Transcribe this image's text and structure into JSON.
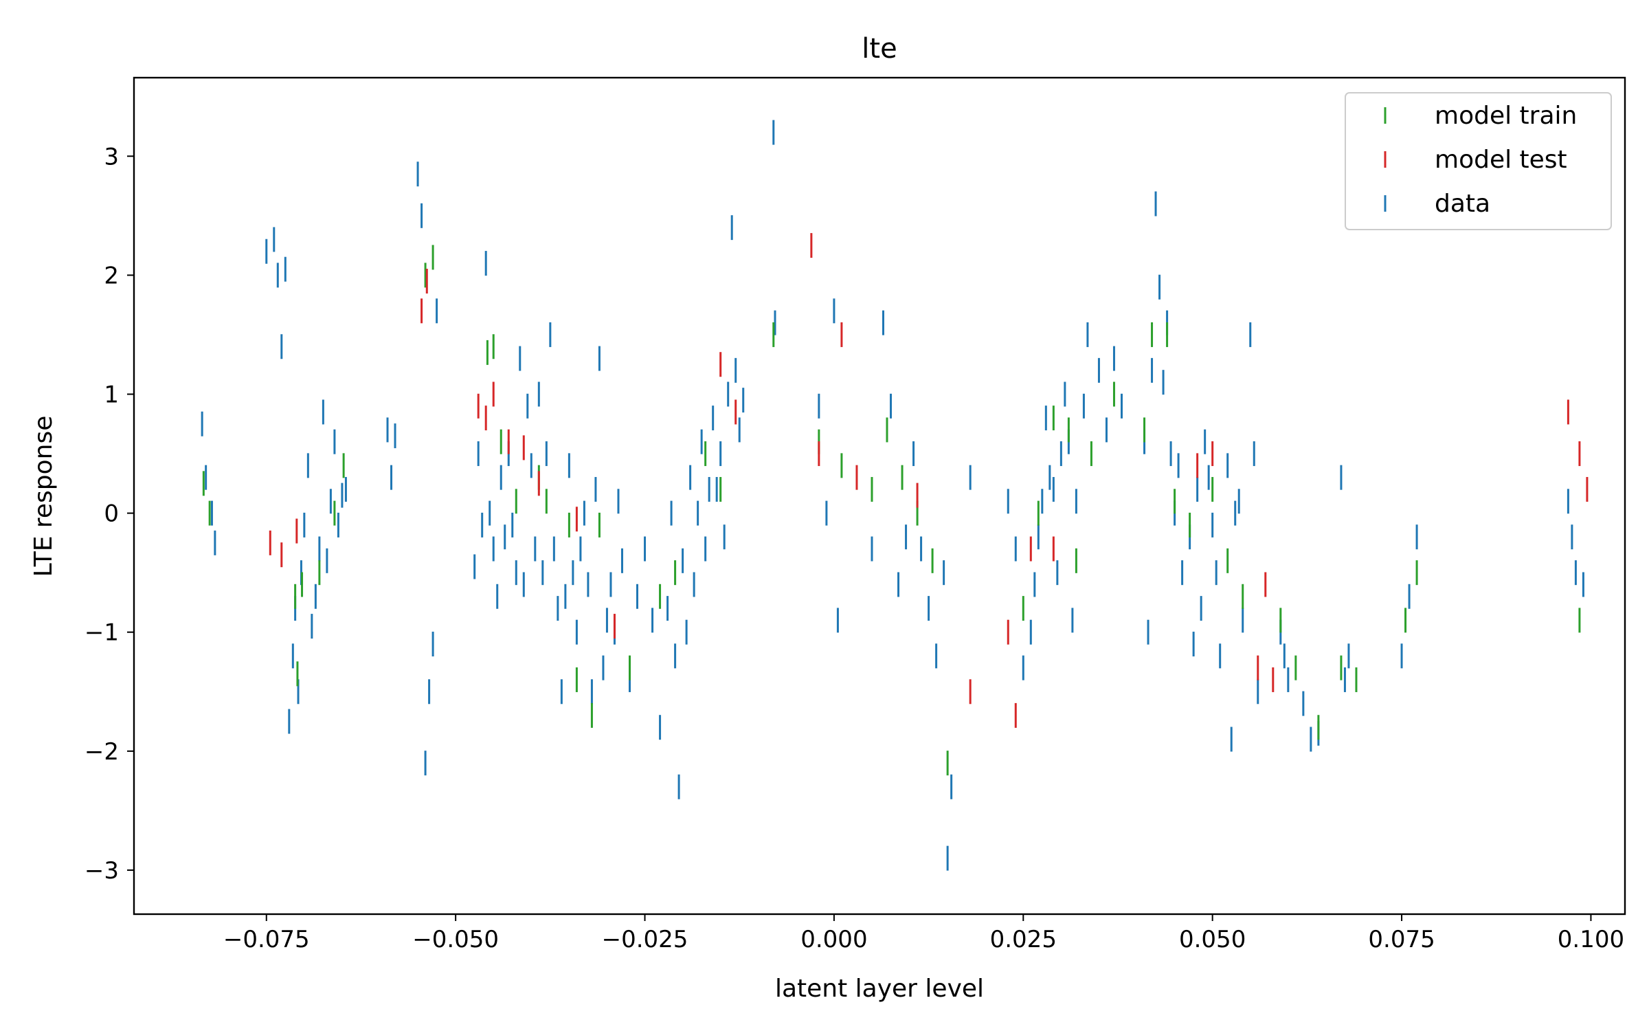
{
  "chart_data": {
    "type": "scatter",
    "title": "lte",
    "xlabel": "latent layer level",
    "ylabel": "LTE response",
    "xlim": [
      -0.0925,
      0.1045
    ],
    "ylim": [
      -3.37,
      3.66
    ],
    "xticks": [
      -0.075,
      -0.05,
      -0.025,
      0.0,
      0.025,
      0.05,
      0.075,
      0.1
    ],
    "xtick_labels": [
      "−0.075",
      "−0.050",
      "−0.025",
      "0.000",
      "0.025",
      "0.050",
      "0.075",
      "0.100"
    ],
    "yticks": [
      -3,
      -2,
      -1,
      0,
      1,
      2,
      3
    ],
    "ytick_labels": [
      "−3",
      "−2",
      "−1",
      "0",
      "1",
      "2",
      "3"
    ],
    "grid": false,
    "legend_position": "top-right",
    "marker": "vertical-tick",
    "series": [
      {
        "name": "model train",
        "color": "#2ca02c",
        "points": [
          [
            -0.0833,
            0.25
          ],
          [
            -0.0825,
            0.0
          ],
          [
            -0.0712,
            -0.7
          ],
          [
            -0.0709,
            -1.35
          ],
          [
            -0.0703,
            -0.6
          ],
          [
            -0.068,
            -0.5
          ],
          [
            -0.066,
            0.0
          ],
          [
            -0.0648,
            0.4
          ],
          [
            -0.054,
            2.0
          ],
          [
            -0.053,
            2.15
          ],
          [
            -0.0458,
            1.35
          ],
          [
            -0.045,
            1.4
          ],
          [
            -0.044,
            0.6
          ],
          [
            -0.042,
            0.1
          ],
          [
            -0.039,
            0.3
          ],
          [
            -0.038,
            0.1
          ],
          [
            -0.035,
            -0.1
          ],
          [
            -0.034,
            -1.4
          ],
          [
            -0.032,
            -1.7
          ],
          [
            -0.031,
            -0.1
          ],
          [
            -0.027,
            -1.3
          ],
          [
            -0.023,
            -0.7
          ],
          [
            -0.021,
            -0.5
          ],
          [
            -0.017,
            0.5
          ],
          [
            -0.015,
            0.2
          ],
          [
            -0.008,
            1.5
          ],
          [
            -0.002,
            0.6
          ],
          [
            0.001,
            0.4
          ],
          [
            0.005,
            0.2
          ],
          [
            0.007,
            0.7
          ],
          [
            0.009,
            0.3
          ],
          [
            0.011,
            0.0
          ],
          [
            0.013,
            -0.4
          ],
          [
            0.015,
            -2.1
          ],
          [
            0.025,
            -0.8
          ],
          [
            0.027,
            0.0
          ],
          [
            0.029,
            0.8
          ],
          [
            0.031,
            0.7
          ],
          [
            0.032,
            -0.4
          ],
          [
            0.034,
            0.5
          ],
          [
            0.037,
            1.0
          ],
          [
            0.041,
            0.7
          ],
          [
            0.042,
            1.5
          ],
          [
            0.044,
            1.5
          ],
          [
            0.045,
            0.1
          ],
          [
            0.047,
            -0.1
          ],
          [
            0.05,
            0.2
          ],
          [
            0.052,
            -0.4
          ],
          [
            0.054,
            -0.7
          ],
          [
            0.059,
            -0.9
          ],
          [
            0.061,
            -1.3
          ],
          [
            0.064,
            -1.8
          ],
          [
            0.067,
            -1.3
          ],
          [
            0.069,
            -1.4
          ],
          [
            0.0755,
            -0.9
          ],
          [
            0.077,
            -0.5
          ],
          [
            0.0985,
            -0.9
          ]
        ]
      },
      {
        "name": "model test",
        "color": "#d62728",
        "points": [
          [
            -0.0745,
            -0.25
          ],
          [
            -0.073,
            -0.35
          ],
          [
            -0.071,
            -0.15
          ],
          [
            -0.0545,
            1.7
          ],
          [
            -0.0538,
            1.95
          ],
          [
            -0.047,
            0.9
          ],
          [
            -0.046,
            0.8
          ],
          [
            -0.045,
            1.0
          ],
          [
            -0.043,
            0.6
          ],
          [
            -0.041,
            0.55
          ],
          [
            -0.039,
            0.25
          ],
          [
            -0.034,
            -0.05
          ],
          [
            -0.029,
            -0.95
          ],
          [
            -0.015,
            1.25
          ],
          [
            -0.013,
            0.85
          ],
          [
            -0.003,
            2.25
          ],
          [
            -0.002,
            0.5
          ],
          [
            0.001,
            1.5
          ],
          [
            0.003,
            0.3
          ],
          [
            0.011,
            0.15
          ],
          [
            0.018,
            -1.5
          ],
          [
            0.023,
            -1.0
          ],
          [
            0.024,
            -1.7
          ],
          [
            0.026,
            -0.3
          ],
          [
            0.029,
            -0.3
          ],
          [
            0.048,
            0.4
          ],
          [
            0.05,
            0.5
          ],
          [
            0.056,
            -1.3
          ],
          [
            0.057,
            -0.6
          ],
          [
            0.058,
            -1.4
          ],
          [
            0.097,
            0.85
          ],
          [
            0.0985,
            0.5
          ],
          [
            0.0995,
            0.2
          ]
        ]
      },
      {
        "name": "data",
        "color": "#1f77b4",
        "points": [
          [
            -0.0835,
            0.75
          ],
          [
            -0.083,
            0.3
          ],
          [
            -0.0822,
            0.0
          ],
          [
            -0.0818,
            -0.25
          ],
          [
            -0.075,
            2.2
          ],
          [
            -0.074,
            2.3
          ],
          [
            -0.0735,
            2.0
          ],
          [
            -0.073,
            1.4
          ],
          [
            -0.0725,
            2.05
          ],
          [
            -0.072,
            -1.75
          ],
          [
            -0.0715,
            -1.2
          ],
          [
            -0.0712,
            -0.8
          ],
          [
            -0.0708,
            -1.5
          ],
          [
            -0.0704,
            -0.5
          ],
          [
            -0.07,
            -0.1
          ],
          [
            -0.0695,
            0.4
          ],
          [
            -0.069,
            -0.95
          ],
          [
            -0.0685,
            -0.7
          ],
          [
            -0.068,
            -0.3
          ],
          [
            -0.0675,
            0.85
          ],
          [
            -0.067,
            -0.4
          ],
          [
            -0.0665,
            0.1
          ],
          [
            -0.066,
            0.6
          ],
          [
            -0.0655,
            -0.1
          ],
          [
            -0.065,
            0.15
          ],
          [
            -0.0645,
            0.2
          ],
          [
            -0.059,
            0.7
          ],
          [
            -0.0585,
            0.3
          ],
          [
            -0.058,
            0.65
          ],
          [
            -0.055,
            2.85
          ],
          [
            -0.0545,
            2.5
          ],
          [
            -0.054,
            -2.1
          ],
          [
            -0.0535,
            -1.5
          ],
          [
            -0.053,
            -1.1
          ],
          [
            -0.0525,
            1.7
          ],
          [
            -0.0475,
            -0.45
          ],
          [
            -0.047,
            0.5
          ],
          [
            -0.0465,
            -0.1
          ],
          [
            -0.046,
            2.1
          ],
          [
            -0.0455,
            0.0
          ],
          [
            -0.045,
            -0.3
          ],
          [
            -0.0445,
            -0.7
          ],
          [
            -0.044,
            0.3
          ],
          [
            -0.0435,
            -0.2
          ],
          [
            -0.043,
            0.5
          ],
          [
            -0.0425,
            -0.1
          ],
          [
            -0.042,
            -0.5
          ],
          [
            -0.0415,
            1.3
          ],
          [
            -0.041,
            -0.6
          ],
          [
            -0.0405,
            0.9
          ],
          [
            -0.04,
            0.4
          ],
          [
            -0.0395,
            -0.3
          ],
          [
            -0.039,
            1.0
          ],
          [
            -0.0385,
            -0.5
          ],
          [
            -0.038,
            0.5
          ],
          [
            -0.0375,
            1.5
          ],
          [
            -0.037,
            -0.3
          ],
          [
            -0.0365,
            -0.8
          ],
          [
            -0.036,
            -1.5
          ],
          [
            -0.0355,
            -0.7
          ],
          [
            -0.035,
            0.4
          ],
          [
            -0.0345,
            -0.5
          ],
          [
            -0.034,
            -1.0
          ],
          [
            -0.0335,
            -0.3
          ],
          [
            -0.033,
            0.0
          ],
          [
            -0.0325,
            -0.6
          ],
          [
            -0.032,
            -1.5
          ],
          [
            -0.0315,
            0.2
          ],
          [
            -0.031,
            1.3
          ],
          [
            -0.0305,
            -1.3
          ],
          [
            -0.03,
            -0.9
          ],
          [
            -0.0295,
            -0.6
          ],
          [
            -0.029,
            -1.0
          ],
          [
            -0.0285,
            0.1
          ],
          [
            -0.028,
            -0.4
          ],
          [
            -0.027,
            -1.4
          ],
          [
            -0.026,
            -0.7
          ],
          [
            -0.025,
            -0.3
          ],
          [
            -0.024,
            -0.9
          ],
          [
            -0.023,
            -1.8
          ],
          [
            -0.022,
            -0.8
          ],
          [
            -0.0215,
            0.0
          ],
          [
            -0.021,
            -1.2
          ],
          [
            -0.0205,
            -2.3
          ],
          [
            -0.02,
            -0.4
          ],
          [
            -0.0195,
            -1.0
          ],
          [
            -0.019,
            0.3
          ],
          [
            -0.0185,
            -0.6
          ],
          [
            -0.018,
            0.0
          ],
          [
            -0.0175,
            0.6
          ],
          [
            -0.017,
            -0.3
          ],
          [
            -0.0165,
            0.2
          ],
          [
            -0.016,
            0.8
          ],
          [
            -0.0155,
            0.2
          ],
          [
            -0.015,
            0.5
          ],
          [
            -0.0145,
            -0.2
          ],
          [
            -0.014,
            1.0
          ],
          [
            -0.0135,
            2.4
          ],
          [
            -0.013,
            1.2
          ],
          [
            -0.0125,
            0.7
          ],
          [
            -0.012,
            0.95
          ],
          [
            -0.008,
            3.2
          ],
          [
            -0.0078,
            1.6
          ],
          [
            -0.002,
            0.9
          ],
          [
            -0.001,
            0.0
          ],
          [
            0.0,
            1.7
          ],
          [
            0.0005,
            -0.9
          ],
          [
            0.005,
            -0.3
          ],
          [
            0.0065,
            1.6
          ],
          [
            0.0075,
            0.9
          ],
          [
            0.0085,
            -0.6
          ],
          [
            0.0095,
            -0.2
          ],
          [
            0.0105,
            0.5
          ],
          [
            0.0115,
            -0.3
          ],
          [
            0.0125,
            -0.8
          ],
          [
            0.0135,
            -1.2
          ],
          [
            0.0145,
            -0.5
          ],
          [
            0.015,
            -2.9
          ],
          [
            0.0155,
            -2.3
          ],
          [
            0.018,
            0.3
          ],
          [
            0.023,
            0.1
          ],
          [
            0.024,
            -0.3
          ],
          [
            0.025,
            -1.3
          ],
          [
            0.026,
            -1.0
          ],
          [
            0.0265,
            -0.6
          ],
          [
            0.027,
            -0.2
          ],
          [
            0.0275,
            0.1
          ],
          [
            0.028,
            0.8
          ],
          [
            0.0285,
            0.3
          ],
          [
            0.029,
            0.2
          ],
          [
            0.0295,
            -0.5
          ],
          [
            0.03,
            0.5
          ],
          [
            0.0305,
            1.0
          ],
          [
            0.031,
            0.6
          ],
          [
            0.0315,
            -0.9
          ],
          [
            0.032,
            0.1
          ],
          [
            0.033,
            0.9
          ],
          [
            0.0335,
            1.5
          ],
          [
            0.035,
            1.2
          ],
          [
            0.036,
            0.7
          ],
          [
            0.037,
            1.3
          ],
          [
            0.038,
            0.9
          ],
          [
            0.041,
            0.6
          ],
          [
            0.0415,
            -1.0
          ],
          [
            0.042,
            1.2
          ],
          [
            0.0425,
            2.6
          ],
          [
            0.043,
            1.9
          ],
          [
            0.0435,
            1.1
          ],
          [
            0.044,
            1.6
          ],
          [
            0.0445,
            0.5
          ],
          [
            0.045,
            0.0
          ],
          [
            0.0455,
            0.4
          ],
          [
            0.046,
            -0.5
          ],
          [
            0.047,
            -0.2
          ],
          [
            0.0475,
            -1.1
          ],
          [
            0.048,
            0.2
          ],
          [
            0.0485,
            -0.8
          ],
          [
            0.049,
            0.6
          ],
          [
            0.0495,
            0.3
          ],
          [
            0.05,
            -0.1
          ],
          [
            0.0505,
            -0.5
          ],
          [
            0.051,
            -1.2
          ],
          [
            0.052,
            0.4
          ],
          [
            0.0525,
            -1.9
          ],
          [
            0.053,
            0.0
          ],
          [
            0.0535,
            0.1
          ],
          [
            0.054,
            -0.9
          ],
          [
            0.055,
            1.5
          ],
          [
            0.0555,
            0.5
          ],
          [
            0.056,
            -1.5
          ],
          [
            0.059,
            -1.0
          ],
          [
            0.0595,
            -1.2
          ],
          [
            0.06,
            -1.4
          ],
          [
            0.062,
            -1.6
          ],
          [
            0.063,
            -1.9
          ],
          [
            0.064,
            -1.85
          ],
          [
            0.067,
            0.3
          ],
          [
            0.0675,
            -1.4
          ],
          [
            0.068,
            -1.2
          ],
          [
            0.075,
            -1.2
          ],
          [
            0.076,
            -0.7
          ],
          [
            0.077,
            -0.2
          ],
          [
            0.097,
            0.1
          ],
          [
            0.0975,
            -0.2
          ],
          [
            0.098,
            -0.5
          ],
          [
            0.099,
            -0.6
          ]
        ]
      }
    ]
  }
}
